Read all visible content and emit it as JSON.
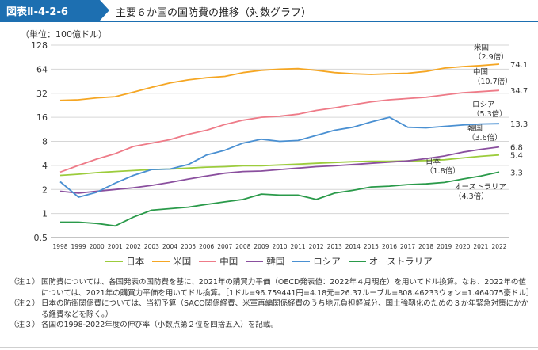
{
  "header": {
    "fig_number": "図表Ⅱ-4-2-6",
    "title": "主要６か国の国防費の推移（対数グラフ）"
  },
  "colors": {
    "header_blue": "#1d6fb1",
    "japan": "#9ccc3c",
    "usa": "#f5a623",
    "china": "#ee7b88",
    "korea": "#8a4f9e",
    "russia": "#4a90d2",
    "australia": "#2a9a4a"
  },
  "chart_data": {
    "type": "line",
    "title": "主要６か国の国防費の推移（対数グラフ）",
    "ylabel": "（単位：100億ドル）",
    "yscale": "log2",
    "ylim": [
      0.5,
      128
    ],
    "yticks": [
      "0.5",
      "1",
      "2",
      "4",
      "8",
      "16",
      "32",
      "64",
      "128"
    ],
    "grid": "horizontal",
    "legend_position": "bottom",
    "x": [
      "1998",
      "1999",
      "2000",
      "2001",
      "2002",
      "2003",
      "2004",
      "2005",
      "2006",
      "2007",
      "2008",
      "2009",
      "2010",
      "2011",
      "2012",
      "2013",
      "2014",
      "2015",
      "2016",
      "2017",
      "2018",
      "2019",
      "2020",
      "2021",
      "2022"
    ],
    "series": [
      {
        "name": "日本",
        "key": "japan",
        "end_value": "5.4",
        "annotation": [
          "日本",
          "（1.8倍）"
        ],
        "values": [
          3.0,
          3.1,
          3.25,
          3.35,
          3.45,
          3.55,
          3.6,
          3.7,
          3.8,
          3.85,
          3.95,
          3.95,
          4.05,
          4.15,
          4.25,
          4.35,
          4.45,
          4.5,
          4.5,
          4.55,
          4.6,
          4.7,
          4.95,
          5.2,
          5.4
        ]
      },
      {
        "name": "米国",
        "key": "usa",
        "end_value": "74.1",
        "annotation": [
          "米国",
          "（2.9倍）"
        ],
        "values": [
          26,
          26.5,
          28,
          29,
          33,
          38,
          43,
          47,
          50,
          52,
          58,
          62,
          64,
          65,
          62,
          58,
          56,
          55,
          56,
          57,
          60,
          66,
          69,
          71,
          74.1
        ]
      },
      {
        "name": "中国",
        "key": "china",
        "end_value": "34.7",
        "annotation": [
          "中国",
          "（10.7倍）"
        ],
        "values": [
          3.3,
          4.0,
          4.8,
          5.6,
          6.9,
          7.6,
          8.4,
          9.8,
          11.0,
          13.0,
          14.7,
          16.0,
          16.5,
          17.5,
          19.5,
          21.0,
          23.0,
          25.0,
          26.5,
          27.5,
          28.5,
          30.5,
          32.5,
          33.5,
          34.7
        ]
      },
      {
        "name": "韓国",
        "key": "korea",
        "end_value": "6.8",
        "annotation": [
          "韓国",
          "（3.6倍）"
        ],
        "values": [
          1.9,
          1.8,
          1.9,
          2.0,
          2.1,
          2.25,
          2.45,
          2.7,
          2.95,
          3.2,
          3.35,
          3.4,
          3.55,
          3.7,
          3.85,
          3.95,
          4.1,
          4.25,
          4.4,
          4.55,
          4.85,
          5.25,
          5.85,
          6.35,
          6.8
        ]
      },
      {
        "name": "ロシア",
        "key": "russia",
        "end_value": "13.3",
        "annotation": [
          "ロシア",
          "（5.3倍）"
        ],
        "values": [
          2.5,
          1.6,
          1.85,
          2.4,
          3.0,
          3.55,
          3.6,
          4.1,
          5.4,
          6.2,
          7.6,
          8.5,
          8.0,
          8.2,
          9.5,
          11.0,
          12.0,
          14.0,
          16.0,
          12.0,
          11.8,
          12.3,
          12.8,
          13.2,
          13.3
        ]
      },
      {
        "name": "オーストラリア",
        "key": "australia",
        "end_value": "3.3",
        "annotation": [
          "オーストラリア",
          "（4.3倍）"
        ],
        "values": [
          0.78,
          0.78,
          0.75,
          0.7,
          0.9,
          1.1,
          1.15,
          1.2,
          1.3,
          1.4,
          1.5,
          1.75,
          1.7,
          1.7,
          1.5,
          1.8,
          1.95,
          2.15,
          2.2,
          2.3,
          2.35,
          2.45,
          2.7,
          2.95,
          3.3
        ]
      }
    ]
  },
  "notes": [
    {
      "label": "（注１）",
      "text": "国防費については、各国発表の国防費を基に、2021年の購買力平価（OECD発表値：2022年４月現在）を用いてドル換算。なお、2022年の値については、2021年の購買力平価を用いてドル換算。［1ドル=96.759441円=4.18元=26.37ルーブル=808.46233ウォン=1.464075豪ドル］"
    },
    {
      "label": "（注２）",
      "text": "日本の防衛関係費については、当初予算（SACO関係経費、米軍再編関係経費のうち地元負担軽減分、国土強靱化のための３か年緊急対策にかかる経費などを除く。）"
    },
    {
      "label": "（注３）",
      "text": "各国の1998-2022年度の伸び率（小数点第２位を四捨五入）を記載。"
    }
  ]
}
